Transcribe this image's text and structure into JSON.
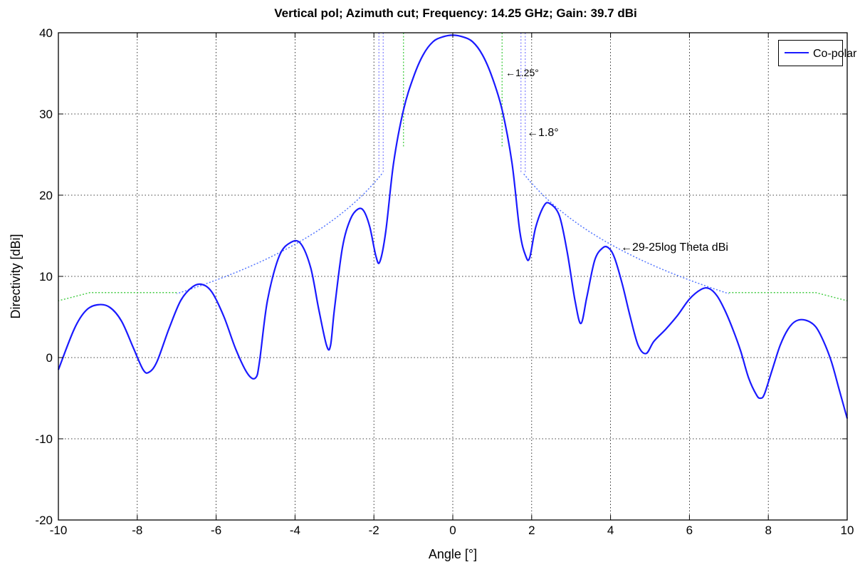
{
  "chart_data": {
    "type": "line",
    "title": "Vertical pol; Azimuth cut;  Frequency: 14.25 GHz;  Gain: 39.7 dBi",
    "xlabel": "Angle [°]",
    "ylabel": "Directivity [dBi]",
    "xlim": [
      -10,
      10
    ],
    "ylim": [
      -20,
      40
    ],
    "xticks": [
      -10,
      -8,
      -6,
      -4,
      -2,
      0,
      2,
      4,
      6,
      8,
      10
    ],
    "yticks": [
      -20,
      -10,
      0,
      10,
      20,
      30,
      40
    ],
    "grid": true,
    "legend_position": "top-right",
    "colors": {
      "copolar": "#1a1aff",
      "mask": "#44cc44",
      "envelope": "#5577ff",
      "beamwidth": "#8888ff"
    },
    "series": [
      {
        "name": "Co-polar",
        "style": "solid",
        "x": [
          -10,
          -9.6,
          -9.3,
          -9.0,
          -8.7,
          -8.4,
          -8.1,
          -7.85,
          -7.7,
          -7.5,
          -7.2,
          -6.9,
          -6.6,
          -6.35,
          -6.1,
          -5.8,
          -5.5,
          -5.2,
          -5.0,
          -4.9,
          -4.7,
          -4.4,
          -4.1,
          -3.85,
          -3.6,
          -3.4,
          -3.2,
          -3.1,
          -3.0,
          -2.8,
          -2.6,
          -2.4,
          -2.25,
          -2.1,
          -1.95,
          -1.85,
          -1.7,
          -1.5,
          -1.25,
          -1.0,
          -0.75,
          -0.5,
          -0.25,
          0,
          0.25,
          0.5,
          0.75,
          1.0,
          1.25,
          1.5,
          1.7,
          1.85,
          1.95,
          2.1,
          2.3,
          2.45,
          2.7,
          2.9,
          3.1,
          3.25,
          3.4,
          3.6,
          3.8,
          3.95,
          4.1,
          4.3,
          4.5,
          4.7,
          4.9,
          5.1,
          5.4,
          5.7,
          6.0,
          6.3,
          6.5,
          6.7,
          6.9,
          7.1,
          7.3,
          7.5,
          7.7,
          7.8,
          7.9,
          8.1,
          8.3,
          8.5,
          8.7,
          8.95,
          9.2,
          9.4,
          9.6,
          9.8,
          10.0
        ],
        "y": [
          -1.5,
          3.5,
          5.8,
          6.5,
          6.2,
          4.5,
          1.2,
          -1.5,
          -1.8,
          -0.5,
          3.5,
          7.0,
          8.7,
          9.0,
          8.0,
          5.0,
          1.0,
          -2.0,
          -2.5,
          -0.5,
          7.0,
          12.5,
          14.2,
          14.0,
          11.0,
          6.0,
          1.5,
          1.5,
          6.0,
          13.5,
          17.0,
          18.3,
          18.0,
          16.0,
          12.5,
          11.8,
          15.5,
          24.0,
          30.5,
          34.5,
          37.3,
          38.9,
          39.5,
          39.7,
          39.5,
          38.9,
          37.3,
          34.5,
          30.5,
          24.0,
          15.5,
          12.5,
          12.3,
          16.0,
          18.6,
          19.0,
          17.5,
          13.0,
          7.0,
          4.2,
          7.5,
          12.0,
          13.5,
          13.5,
          12.3,
          9.0,
          5.0,
          1.5,
          0.5,
          2.0,
          3.5,
          5.2,
          7.2,
          8.4,
          8.5,
          7.6,
          5.8,
          3.5,
          0.8,
          -2.5,
          -4.6,
          -5.0,
          -4.5,
          -1.5,
          1.5,
          3.5,
          4.5,
          4.6,
          3.8,
          2.0,
          -0.5,
          -4.0,
          -7.5
        ]
      }
    ],
    "annotations": [
      "1.25°",
      "1.8°",
      "29-25log Theta dBi"
    ]
  }
}
